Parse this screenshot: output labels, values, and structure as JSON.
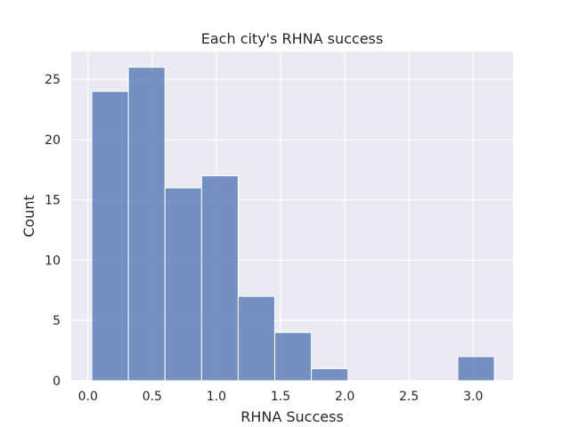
{
  "chart_data": {
    "type": "bar",
    "subtype": "histogram",
    "title": "Each city's RHNA success",
    "xlabel": "RHNA Success",
    "ylabel": "Count",
    "xlim": [
      -0.13,
      3.31
    ],
    "ylim": [
      0,
      27.3
    ],
    "xticks": [
      0.0,
      0.5,
      1.0,
      1.5,
      2.0,
      2.5,
      3.0
    ],
    "xtick_labels": [
      "0.0",
      "0.5",
      "1.0",
      "1.5",
      "2.0",
      "2.5",
      "3.0"
    ],
    "yticks": [
      0,
      5,
      10,
      15,
      20,
      25
    ],
    "ytick_labels": [
      "0",
      "5",
      "10",
      "15",
      "20",
      "25"
    ],
    "bins": [
      {
        "x0": 0.03,
        "x1": 0.315,
        "count": 24
      },
      {
        "x0": 0.315,
        "x1": 0.6,
        "count": 26
      },
      {
        "x0": 0.6,
        "x1": 0.885,
        "count": 16
      },
      {
        "x0": 0.885,
        "x1": 1.17,
        "count": 17
      },
      {
        "x0": 1.17,
        "x1": 1.455,
        "count": 7
      },
      {
        "x0": 1.455,
        "x1": 1.74,
        "count": 4
      },
      {
        "x0": 1.74,
        "x1": 2.025,
        "count": 1
      },
      {
        "x0": 2.025,
        "x1": 2.31,
        "count": 0
      },
      {
        "x0": 2.31,
        "x1": 2.595,
        "count": 0
      },
      {
        "x0": 2.595,
        "x1": 2.88,
        "count": 0
      },
      {
        "x0": 2.88,
        "x1": 3.165,
        "count": 2
      }
    ],
    "grid": true,
    "colors": {
      "bar": "#4c72b0",
      "background": "#eaeaf2",
      "grid": "#ffffff"
    }
  }
}
